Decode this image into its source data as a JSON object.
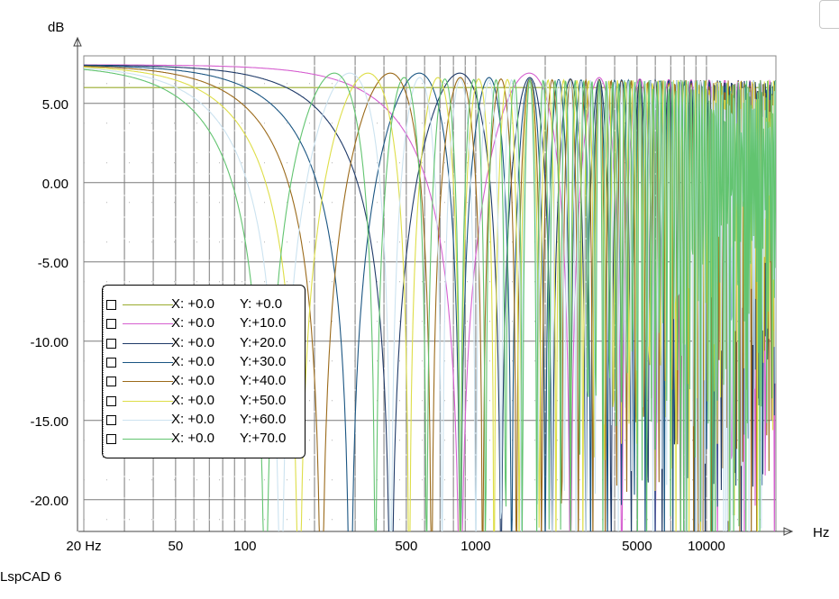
{
  "footer": {
    "app_name": "LspCAD 6"
  },
  "chart_data": {
    "type": "line",
    "ylabel": "dB",
    "xlabel": "Hz",
    "x_scale": "log",
    "xlim": [
      20,
      20000
    ],
    "ylim": [
      -22,
      8
    ],
    "x_ticks": [
      {
        "value": 20,
        "label": "20 Hz"
      },
      {
        "value": 50,
        "label": "50"
      },
      {
        "value": 100,
        "label": "100"
      },
      {
        "value": 500,
        "label": "500"
      },
      {
        "value": 1000,
        "label": "1000"
      },
      {
        "value": 5000,
        "label": "5000"
      },
      {
        "value": 10000,
        "label": "10000"
      }
    ],
    "y_ticks": [
      {
        "value": 5,
        "label": "5.00"
      },
      {
        "value": 0,
        "label": "0.00"
      },
      {
        "value": -5,
        "label": "-5.00"
      },
      {
        "value": -10,
        "label": "-10.00"
      },
      {
        "value": -15,
        "label": "-15.00"
      },
      {
        "value": -20,
        "label": "-20.00"
      }
    ],
    "grid": true,
    "legend_position": "left-center",
    "series": [
      {
        "x_label": "X:  +0.0",
        "y_label": "Y:  +0.0",
        "color": "#9aab2e",
        "offset_m": 0.0
      },
      {
        "x_label": "X:  +0.0",
        "y_label": "Y:+10.0",
        "color": "#d65fd0",
        "offset_m": 0.1
      },
      {
        "x_label": "X:  +0.0",
        "y_label": "Y:+20.0",
        "color": "#1f3a68",
        "offset_m": 0.2
      },
      {
        "x_label": "X:  +0.0",
        "y_label": "Y:+30.0",
        "color": "#1a5582",
        "offset_m": 0.3
      },
      {
        "x_label": "X:  +0.0",
        "y_label": "Y:+40.0",
        "color": "#9b6a1a",
        "offset_m": 0.4
      },
      {
        "x_label": "X:  +0.0",
        "y_label": "Y:+50.0",
        "color": "#dede48",
        "offset_m": 0.5
      },
      {
        "x_label": "X:  +0.0",
        "y_label": "Y:+60.0",
        "color": "#cce3f0",
        "offset_m": 0.6
      },
      {
        "x_label": "X:  +0.0",
        "y_label": "Y:+70.0",
        "color": "#62c470",
        "offset_m": 0.7
      }
    ]
  }
}
